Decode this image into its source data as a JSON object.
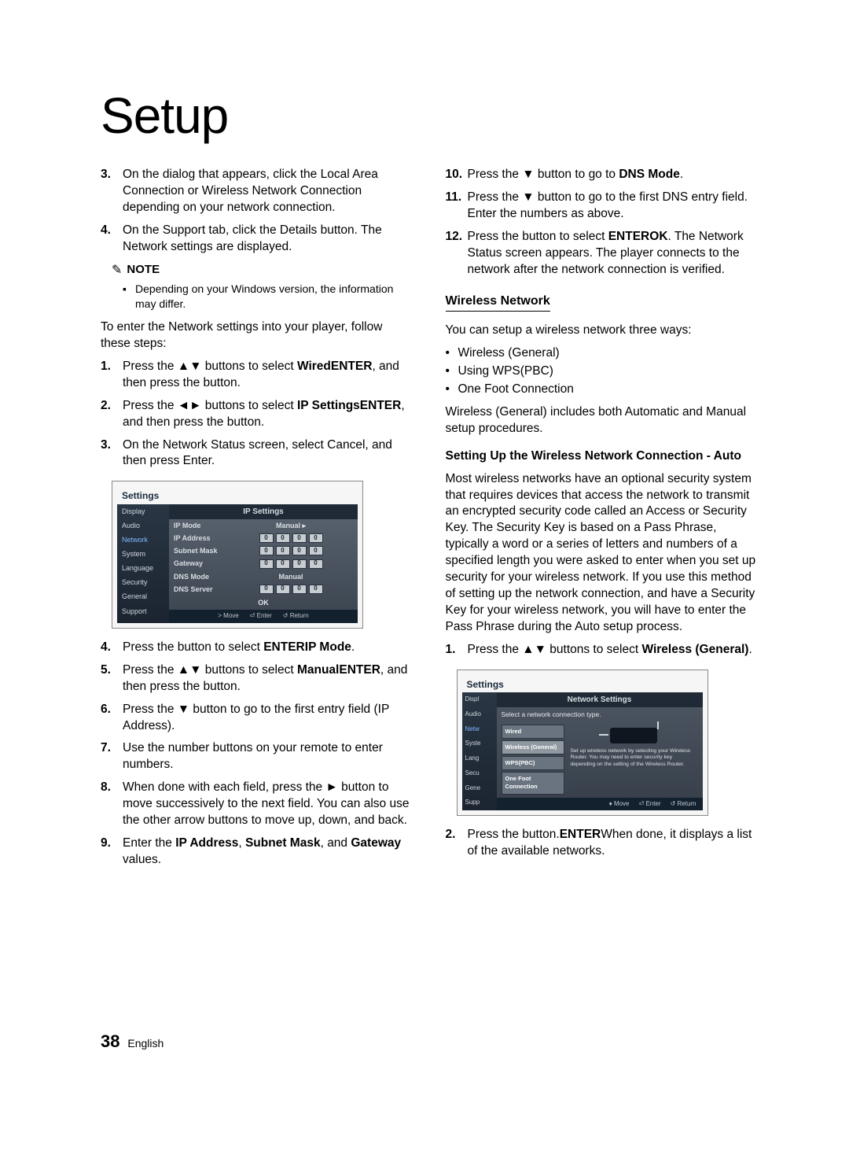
{
  "page": {
    "title": "Setup",
    "number": "38",
    "language": "English"
  },
  "left": {
    "steps_a": [
      {
        "n": "3.",
        "t": "On the dialog that appears, click the Local Area Connection or Wireless Network Connection depending on your network connection."
      },
      {
        "n": "4.",
        "t": "On the Support tab, click the Details button. The Network settings are displayed."
      }
    ],
    "note_label": "NOTE",
    "note_text": "Depending on your Windows version, the information may differ.",
    "para1": "To enter the Network settings into your player, follow these steps:",
    "steps_b": [
      {
        "n": "1.",
        "pre": "Press the ",
        "sym": "▲▼",
        "mid": " buttons to select ",
        "b1": "Wired",
        "post": ", and then press the ",
        "b2": "ENTER",
        "end": " button."
      },
      {
        "n": "2.",
        "pre": "Press the ",
        "sym": "◄►",
        "mid": " buttons to select ",
        "b1": "IP Settings",
        "post": ", and then press the ",
        "b2": "ENTER",
        "end": " button."
      },
      {
        "n": "3.",
        "plain": "On the Network Status screen, select Cancel, and then press Enter."
      }
    ],
    "steps_c": [
      {
        "n": "4.",
        "pre": "Press the ",
        "b1": "ENTER",
        "mid": " button to select ",
        "b2": "IP Mode",
        "end": "."
      },
      {
        "n": "5.",
        "pre": "Press the ",
        "sym": "▲▼",
        "mid": " buttons to select ",
        "b1": "Manual",
        "post": ", and then press the ",
        "b2": "ENTER",
        "end": " button."
      },
      {
        "n": "6.",
        "pre": "Press the ",
        "sym": "▼",
        "mid": " button to go to the first entry field (IP Address).",
        "end": ""
      },
      {
        "n": "7.",
        "plain": "Use the number buttons on your remote to enter numbers."
      },
      {
        "n": "8.",
        "pre": "When done with each field, press the ",
        "sym": "►",
        "mid": " button to move successively to the next field. You can also use the other arrow buttons to move up, down, and back.",
        "end": ""
      },
      {
        "n": "9.",
        "pre": "Enter the ",
        "b1": "IP Address",
        "mid2": ", ",
        "b2": "Subnet Mask",
        "mid3": ", and ",
        "b3": "Gateway",
        "end": " values."
      }
    ]
  },
  "right": {
    "steps_d": [
      {
        "n": "10.",
        "pre": "Press the ",
        "sym": "▼",
        "mid": " button to go to ",
        "b1": "DNS Mode",
        "end": "."
      },
      {
        "n": "11.",
        "pre": "Press the ",
        "sym": "▼",
        "mid": " button to go to the first DNS entry field. Enter the numbers as above.",
        "end": ""
      },
      {
        "n": "12.",
        "pre": "Press the ",
        "b1": "ENTER",
        "mid": " button to select ",
        "b2": "OK",
        "post": ". The Network Status screen appears. The player connects to the network after the network connection is verified.",
        "end": ""
      }
    ],
    "h_wireless": "Wireless Network",
    "wireless_intro": "You can setup a wireless network three ways:",
    "wireless_list": [
      "Wireless (General)",
      "Using WPS(PBC)",
      "One Foot Connection"
    ],
    "wireless_note": "Wireless (General) includes both Automatic and Manual setup procedures.",
    "h_auto": "Setting Up the Wireless Network Connection - Auto",
    "auto_para": "Most wireless networks have an optional security system that requires devices that access the network to transmit an encrypted security code called an Access or Security Key. The Security Key is based on a Pass Phrase, typically a word or a series of letters and numbers of a specified length you were asked to enter when you set up security for your wireless network. If you use this method of setting up the network connection, and have a Security Key for your wireless network, you will have to enter the Pass Phrase during the Auto setup process.",
    "steps_e": [
      {
        "n": "1.",
        "pre": "Press the ",
        "sym": "▲▼",
        "mid": " buttons to select ",
        "b1": "Wireless (General)",
        "end": "."
      }
    ],
    "steps_f": [
      {
        "n": "2.",
        "pre": "Press the ",
        "b1": "ENTER",
        "mid": " button.",
        "post": "When done, it displays a list of the available networks.",
        "end": ""
      }
    ]
  },
  "ss1": {
    "title": "Settings",
    "header": "IP Settings",
    "side": [
      "Display",
      "Audio",
      "Network",
      "System",
      "Language",
      "Security",
      "General",
      "Support"
    ],
    "side_sel_index": 2,
    "rows": [
      {
        "label": "IP Mode",
        "type": "val",
        "val": "Manual",
        "chev": "▸"
      },
      {
        "label": "IP Address",
        "type": "ip",
        "cells": [
          "0",
          "0",
          "0",
          "0"
        ]
      },
      {
        "label": "Subnet Mask",
        "type": "ip",
        "cells": [
          "0",
          "0",
          "0",
          "0"
        ]
      },
      {
        "label": "Gateway",
        "type": "ip",
        "cells": [
          "0",
          "0",
          "0",
          "0"
        ]
      },
      {
        "label": "DNS Mode",
        "type": "val",
        "val": "Manual"
      },
      {
        "label": "DNS Server",
        "type": "ip",
        "cells": [
          "0",
          "0",
          "0",
          "0"
        ]
      }
    ],
    "ok": "OK",
    "footer": [
      "> Move",
      "⏎ Enter",
      "↺ Return"
    ],
    "colors": {
      "side_bg": "#1b2430",
      "main_bg": "#3a434e",
      "header_bg": "#1f2a36",
      "cell_bg": "#c7ccd1"
    }
  },
  "ss2": {
    "title": "Settings",
    "header": "Network Settings",
    "sub": "Select a network connection type.",
    "side": [
      "Displ",
      "Audio",
      "Netw",
      "Syste",
      "Lang",
      "Secu",
      "Gene",
      "Supp"
    ],
    "side_sel_index": 2,
    "options": [
      "Wired",
      "Wireless (General)",
      "WPS(PBC)",
      "One Foot Connection"
    ],
    "opt_sel_index": 1,
    "desc": "Set up wireless network by selecting your Wireless Router. You may need to enter security key depending on the setting of the Wireless Router.",
    "footer": [
      "♦ Move",
      "⏎ Enter",
      "↺ Return"
    ]
  }
}
